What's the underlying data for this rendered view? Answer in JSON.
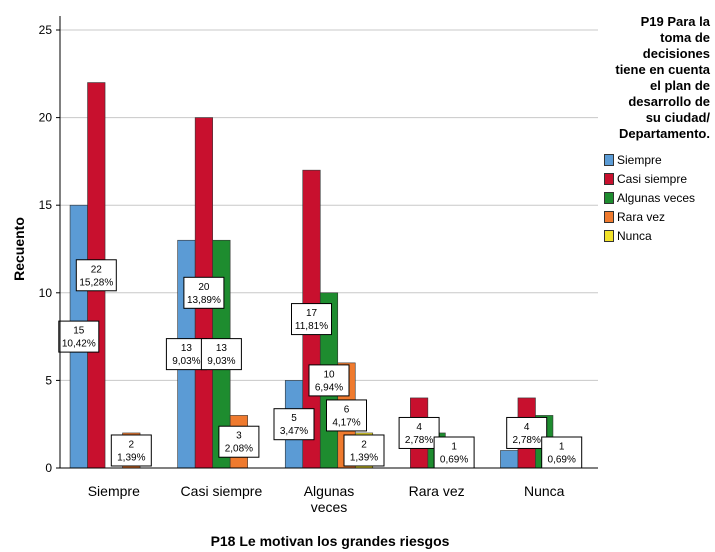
{
  "chart_data": {
    "type": "bar",
    "xlabel": "P18 Le motivan los grandes riesgos",
    "ylabel": "Recuento",
    "ylim": [
      0,
      25
    ],
    "yticks": [
      0,
      5,
      10,
      15,
      20,
      25
    ],
    "categories": [
      "Siempre",
      "Casi siempre",
      "Algunas\nveces",
      "Rara vez",
      "Nunca"
    ],
    "legend": {
      "title": "P19 Para la\ntoma de\ndecisiones\ntiene en cuenta\nel plan de\ndesarrollo de\nsu ciudad/\nDepartamento.",
      "placement": "right"
    },
    "series": [
      {
        "name": "Siempre",
        "color": "#5b9bd5",
        "values": [
          15,
          13,
          5,
          0,
          1
        ],
        "labels": [
          [
            "15",
            "10,42%"
          ],
          [
            "13",
            "9,03%"
          ],
          [
            "5",
            "3,47%"
          ],
          null,
          null
        ]
      },
      {
        "name": "Casi siempre",
        "color": "#c8102e",
        "values": [
          22,
          20,
          17,
          4,
          4
        ],
        "labels": [
          [
            "22",
            "15,28%"
          ],
          [
            "20",
            "13,89%"
          ],
          [
            "17",
            "11,81%"
          ],
          [
            "4",
            "2,78%"
          ],
          [
            "4",
            "2,78%"
          ]
        ]
      },
      {
        "name": "Algunas veces",
        "color": "#1e8c2f",
        "values": [
          0,
          13,
          10,
          2,
          3
        ],
        "labels": [
          null,
          [
            "13",
            "9,03%"
          ],
          [
            "10",
            "6,94%"
          ],
          null,
          null
        ]
      },
      {
        "name": "Rara vez",
        "color": "#ef7a2e",
        "values": [
          2,
          3,
          6,
          1,
          1
        ],
        "labels": [
          [
            "2",
            "1,39%"
          ],
          [
            "3",
            "2,08%"
          ],
          [
            "6",
            "4,17%"
          ],
          [
            "1",
            "0,69%"
          ],
          [
            "1",
            "0,69%"
          ]
        ]
      },
      {
        "name": "Nunca",
        "color": "#f2e22a",
        "values": [
          0,
          0,
          2,
          0,
          0
        ],
        "labels": [
          null,
          null,
          [
            "2",
            "1,39%"
          ],
          null,
          null
        ]
      }
    ],
    "grid": true
  }
}
